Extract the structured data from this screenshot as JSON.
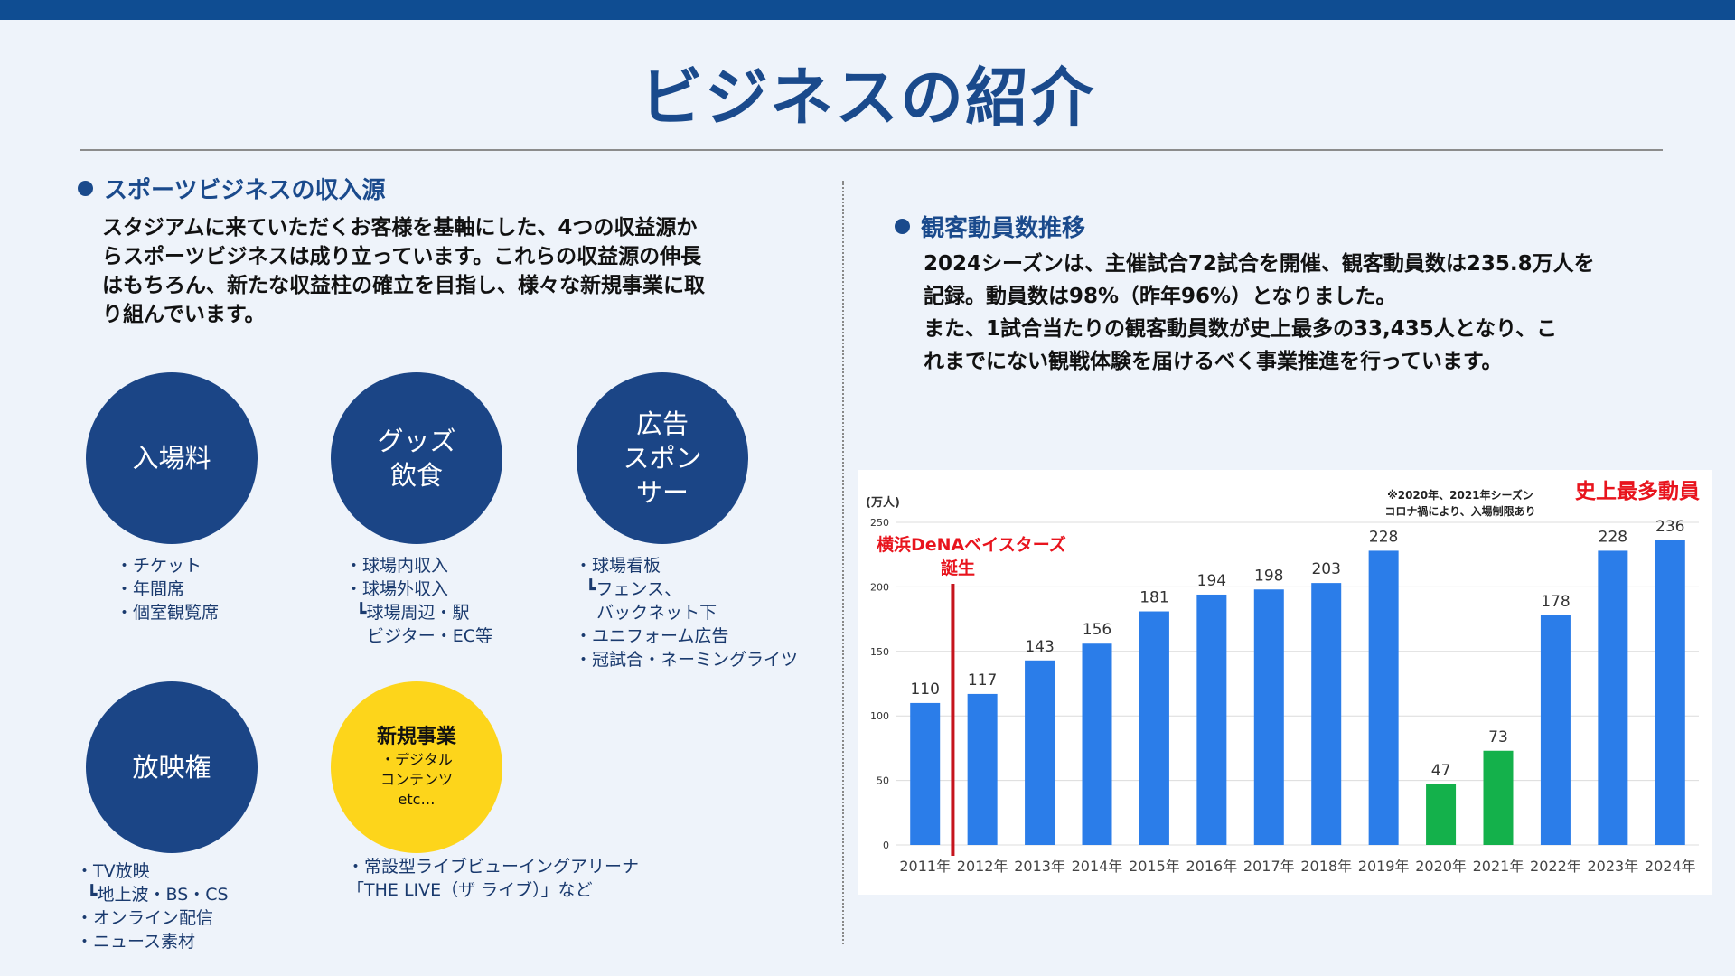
{
  "page_title": "ビジネスの紹介",
  "left": {
    "heading": "スポーツビジネスの収入源",
    "paragraph_lines": [
      "スタジアムに来ていただくお客様を基軸にした、4つの収益源か",
      "らスポーツビジネスは成り立っています。これらの収益源の伸長",
      "はもちろん、新たな収益柱の確立を目指し、様々な新規事業に取",
      "り組んでいます。"
    ],
    "circles": [
      {
        "title": "入場料",
        "sub": "",
        "items": "・チケット\n・年間席\n・個室観覧席"
      },
      {
        "title": "グッズ\n飲食",
        "sub": "",
        "items": "・球場内収入\n・球場外収入\n  ┗球場周辺・駅\n    ビジター・EC等"
      },
      {
        "title": "広告\nスポン\nサー",
        "sub": "",
        "items": "・球場看板\n  ┗フェンス、\n    バックネット下\n・ユニフォーム広告\n・冠試合・ネーミングライツ"
      },
      {
        "title": "放映権",
        "sub": "",
        "items": "・TV放映\n  ┗地上波・BS・CS\n・オンライン配信\n・ニュース素材"
      },
      {
        "title": "新規事業",
        "sub": "・デジタル\nコンテンツ\netc…",
        "items": "・常設型ライブビューイングアリーナ\n「THE LIVE（ザ ライブ）」など"
      }
    ]
  },
  "right": {
    "heading": "観客動員数推移",
    "paragraph_lines": [
      "2024シーズンは、主催試合72試合を開催、観客動員数は235.8万人を",
      "記録。動員数は98%（昨年96%）となりました。",
      "また、1試合当たりの観客動員数が史上最多の33,435人となり、こ",
      "れまでにない観戦体験を届けるべく事業推進を行っています。"
    ]
  },
  "chart_data": {
    "type": "bar",
    "unit_label": "(万人)",
    "categories": [
      "2011年",
      "2012年",
      "2013年",
      "2014年",
      "2015年",
      "2016年",
      "2017年",
      "2018年",
      "2019年",
      "2020年",
      "2021年",
      "2022年",
      "2023年",
      "2024年"
    ],
    "values": [
      110,
      117,
      143,
      156,
      181,
      194,
      198,
      203,
      228,
      47,
      73,
      178,
      228,
      236
    ],
    "value_labels": [
      "110",
      "117",
      "143",
      "156",
      "181",
      "194",
      "198",
      "203",
      "228",
      "47",
      "73",
      "178",
      "228",
      "236"
    ],
    "highlight_categories": [
      "2020年",
      "2021年"
    ],
    "ylim": [
      0,
      250
    ],
    "yticks": [
      "0",
      "50",
      "100",
      "150",
      "200",
      "250"
    ],
    "grid": true,
    "colors": {
      "bar": "#2b7de9",
      "restricted_bar": "#14b14b",
      "annotation_red": "#e8141d",
      "marker_line": "#c6141d"
    },
    "annotations": {
      "founding_line1": "横浜DeNAベイスターズ",
      "founding_line2": "誕生",
      "record": "史上最多動員",
      "note_line1": "※2020年、2021年シーズン",
      "note_line2": "コロナ禍により、入場制限あり"
    }
  }
}
